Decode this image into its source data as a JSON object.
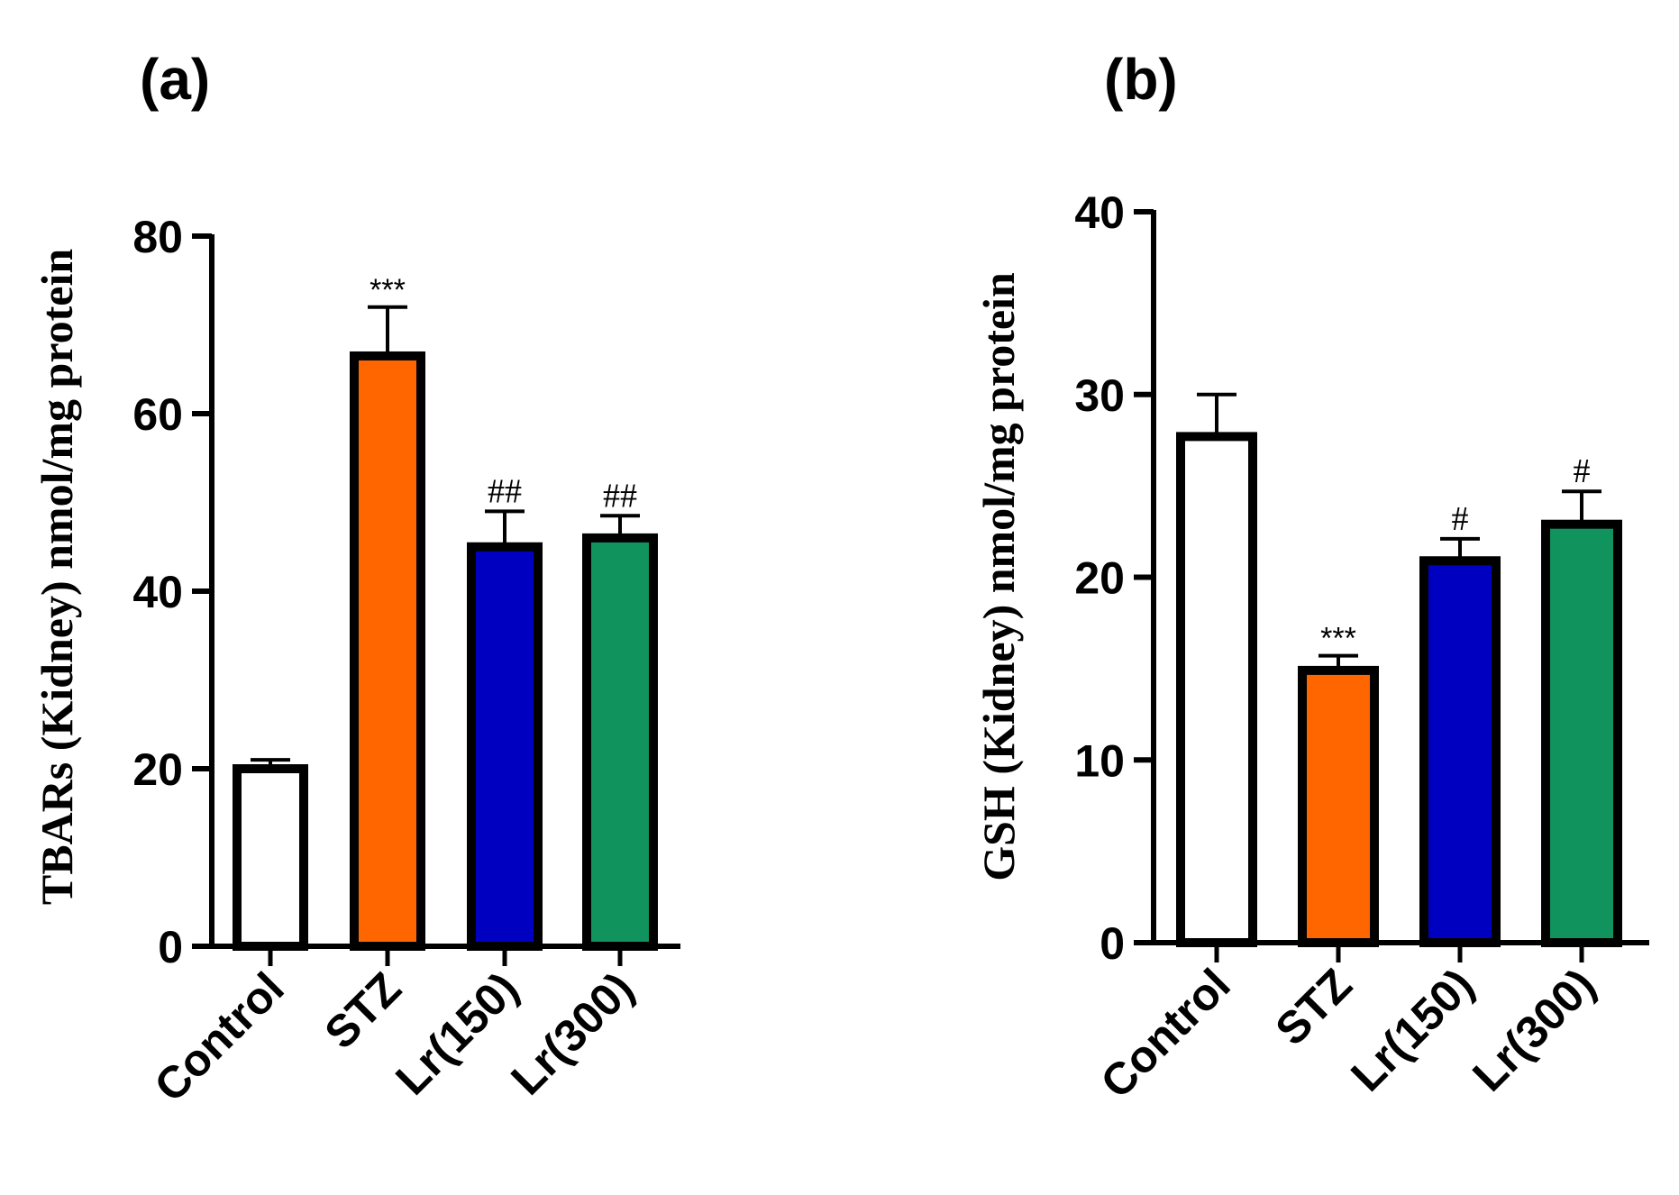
{
  "chart_data": [
    {
      "panel": "(a)",
      "type": "bar",
      "categories": [
        "Control",
        "STZ",
        "Lr(150)",
        "Lr(300)"
      ],
      "values": [
        20,
        66.5,
        45,
        46
      ],
      "errors": [
        1,
        5.5,
        4,
        2.5
      ],
      "bar_colors": [
        "#ffffff",
        "#ff6600",
        "#0000c0",
        "#11935e"
      ],
      "significance": [
        "",
        "***",
        "##",
        "##"
      ],
      "ylabel": "TBARs (Kidney) nmol/mg protein",
      "ylim": [
        0,
        80
      ],
      "yticks": [
        0,
        20,
        40,
        60,
        80
      ],
      "ytick_labels": [
        "0",
        "20",
        "40",
        "60",
        "80"
      ]
    },
    {
      "panel": "(b)",
      "type": "bar",
      "categories": [
        "Control",
        "STZ",
        "Lr(150)",
        "Lr(300)"
      ],
      "values": [
        27.7,
        14.9,
        20.9,
        22.9
      ],
      "errors": [
        2.3,
        0.8,
        1.2,
        1.8
      ],
      "bar_colors": [
        "#ffffff",
        "#ff6600",
        "#0000c0",
        "#11935e"
      ],
      "significance": [
        "",
        "***",
        "#",
        "#"
      ],
      "ylabel": "GSH (Kidney) nmol/mg protein",
      "ylim": [
        0,
        40
      ],
      "yticks": [
        0,
        10,
        20,
        30,
        40
      ],
      "ytick_labels": [
        "0",
        "10",
        "20",
        "30",
        "40"
      ]
    }
  ]
}
